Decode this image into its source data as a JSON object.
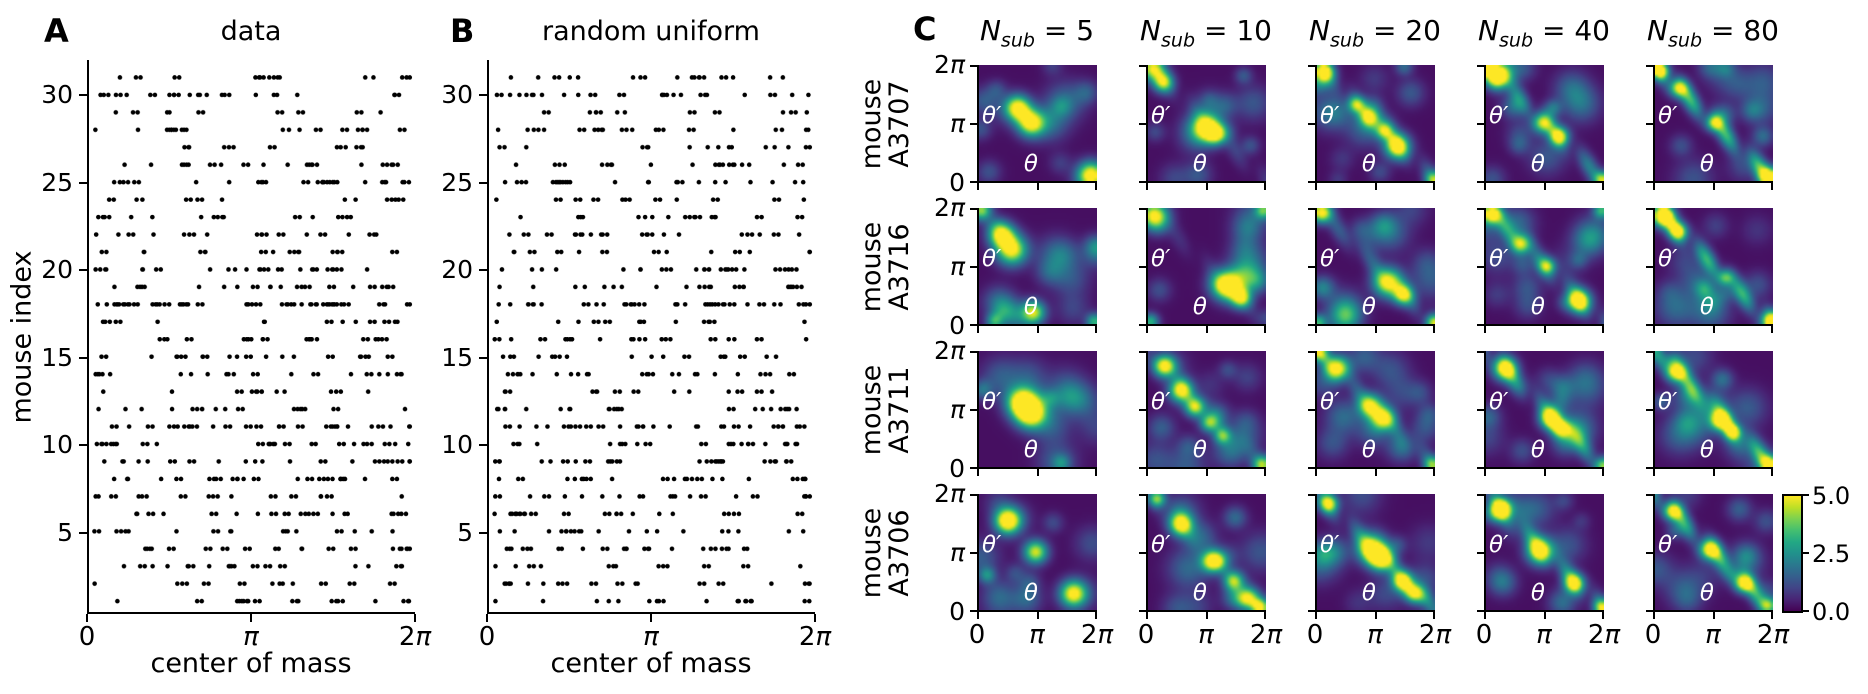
{
  "figure": {
    "background": "#ffffff",
    "panel_tags": {
      "A": "A",
      "B": "B",
      "C": "C"
    }
  },
  "chart_data": [
    {
      "type": "scatter",
      "panel": "A",
      "title": "data",
      "xlabel": "center of mass",
      "ylabel": "mouse index",
      "dot_color": "#000000",
      "xlim": [
        0,
        6.2832
      ],
      "ylim": [
        0.5,
        31.5
      ],
      "xtick_labels": [
        "0",
        "π",
        "2π"
      ],
      "yticks": [
        5,
        10,
        15,
        20,
        25,
        30
      ],
      "n_rows": 31,
      "points_per_row": [
        22,
        18,
        24,
        26,
        20,
        26,
        22,
        30,
        26,
        32,
        38,
        20,
        16,
        24,
        26,
        24,
        18,
        58,
        26,
        28,
        20,
        22,
        18,
        16,
        30,
        24,
        14,
        24,
        14,
        26,
        18
      ],
      "pair_probability": 0.45,
      "procedural_seed": 12345
    },
    {
      "type": "scatter",
      "panel": "B",
      "title": "random uniform",
      "xlabel": "center of mass",
      "ylabel": "",
      "dot_color": "#000000",
      "xlim": [
        0,
        6.2832
      ],
      "ylim": [
        0.5,
        31.5
      ],
      "xtick_labels": [
        "0",
        "π",
        "2π"
      ],
      "yticks": [
        5,
        10,
        15,
        20,
        25,
        30
      ],
      "n_rows": 31,
      "points_per_row": [
        18,
        24,
        16,
        26,
        20,
        28,
        24,
        26,
        32,
        26,
        36,
        24,
        18,
        26,
        20,
        24,
        16,
        42,
        24,
        28,
        18,
        26,
        20,
        18,
        26,
        22,
        16,
        24,
        16,
        28,
        20
      ],
      "pair_probability": 0.3,
      "procedural_seed": 67890
    },
    {
      "type": "heatmap_grid",
      "panel": "C",
      "columns": [
        {
          "base": "N",
          "sub": "sub",
          "rhs": "= 5",
          "value": 5
        },
        {
          "base": "N",
          "sub": "sub",
          "rhs": "= 10",
          "value": 10
        },
        {
          "base": "N",
          "sub": "sub",
          "rhs": "= 20",
          "value": 20
        },
        {
          "base": "N",
          "sub": "sub",
          "rhs": "= 40",
          "value": 40
        },
        {
          "base": "N",
          "sub": "sub",
          "rhs": "= 80",
          "value": 80
        }
      ],
      "rows": [
        {
          "line1": "mouse",
          "line2": "A3707"
        },
        {
          "line1": "mouse",
          "line2": "A3716"
        },
        {
          "line1": "mouse",
          "line2": "A3711"
        },
        {
          "line1": "mouse",
          "line2": "A3706"
        }
      ],
      "cell_axes": {
        "xlabel": "θ",
        "ylabel": "θ′",
        "range": [
          0,
          6.2832
        ],
        "ytick_labels": [
          "2π",
          "π",
          "0"
        ],
        "xtick_labels": [
          "0",
          "π",
          "2π"
        ]
      },
      "colorbar": {
        "min": 0.0,
        "max": 5.0,
        "tick_labels": [
          "5.0",
          "2.5",
          "0.0"
        ],
        "colormap": "viridis",
        "color_min": "#440154",
        "color_mid": "#21918c",
        "color_max": "#fde725"
      },
      "cells": [
        {
          "mouse": "A3707",
          "n_sub": 5,
          "ridge": 0,
          "seed": 11,
          "blobs": [
            [
              0.33,
              0.63,
              5,
              0.075
            ],
            [
              0.44,
              0.5,
              5,
              0.08
            ],
            [
              0.95,
              0.05,
              5,
              0.08
            ]
          ]
        },
        {
          "mouse": "A3707",
          "n_sub": 10,
          "ridge": 0.6,
          "seed": 12,
          "blobs": [
            [
              0.04,
              0.97,
              4.5,
              0.07
            ],
            [
              0.13,
              0.85,
              4,
              0.06
            ],
            [
              0.5,
              0.46,
              5,
              0.085
            ],
            [
              0.58,
              0.4,
              3.5,
              0.06
            ]
          ]
        },
        {
          "mouse": "A3707",
          "n_sub": 20,
          "ridge": 1.2,
          "seed": 13,
          "blobs": [
            [
              0.06,
              0.94,
              5,
              0.06
            ],
            [
              0.33,
              0.66,
              3,
              0.05
            ],
            [
              0.45,
              0.55,
              3.5,
              0.06
            ],
            [
              0.57,
              0.43,
              3,
              0.05
            ],
            [
              0.68,
              0.3,
              5,
              0.075
            ],
            [
              0.99,
              0.01,
              3,
              0.05
            ]
          ]
        },
        {
          "mouse": "A3707",
          "n_sub": 40,
          "ridge": 1.6,
          "seed": 14,
          "blobs": [
            [
              0.1,
              0.9,
              5,
              0.07
            ],
            [
              0.48,
              0.5,
              4,
              0.06
            ],
            [
              0.62,
              0.38,
              3.5,
              0.055
            ],
            [
              0.01,
              0.99,
              4,
              0.05
            ],
            [
              0.99,
              0.01,
              4,
              0.05
            ]
          ]
        },
        {
          "mouse": "A3707",
          "n_sub": 80,
          "ridge": 2.6,
          "seed": 15,
          "blobs": [
            [
              0.2,
              0.8,
              4,
              0.055
            ],
            [
              0.5,
              0.5,
              3.5,
              0.05
            ],
            [
              0.05,
              0.95,
              4,
              0.05
            ],
            [
              0.97,
              0.03,
              5,
              0.06
            ]
          ]
        },
        {
          "mouse": "A3716",
          "n_sub": 5,
          "ridge": 0,
          "seed": 21,
          "blobs": [
            [
              0.02,
              0.98,
              4,
              0.06
            ],
            [
              0.19,
              0.77,
              5,
              0.075
            ],
            [
              0.28,
              0.64,
              5,
              0.09
            ],
            [
              0.46,
              0.1,
              4.5,
              0.07
            ],
            [
              0.98,
              0.02,
              3,
              0.05
            ],
            [
              0.13,
              0.02,
              2.5,
              0.05
            ]
          ]
        },
        {
          "mouse": "A3716",
          "n_sub": 10,
          "ridge": 0.4,
          "seed": 22,
          "blobs": [
            [
              0.06,
              0.93,
              5,
              0.08
            ],
            [
              0.67,
              0.33,
              5,
              0.085
            ],
            [
              0.79,
              0.22,
              4,
              0.06
            ],
            [
              0.02,
              0.02,
              3,
              0.05
            ],
            [
              0.98,
              0.98,
              3,
              0.05
            ]
          ]
        },
        {
          "mouse": "A3716",
          "n_sub": 20,
          "ridge": 1.0,
          "seed": 23,
          "blobs": [
            [
              0.04,
              0.96,
              5,
              0.06
            ],
            [
              0.6,
              0.36,
              5,
              0.085
            ],
            [
              0.73,
              0.25,
              4,
              0.06
            ],
            [
              0.99,
              0.01,
              4,
              0.05
            ],
            [
              0.01,
              0.01,
              3,
              0.05
            ]
          ]
        },
        {
          "mouse": "A3716",
          "n_sub": 40,
          "ridge": 1.6,
          "seed": 24,
          "blobs": [
            [
              0.05,
              0.95,
              5,
              0.06
            ],
            [
              0.3,
              0.69,
              4,
              0.06
            ],
            [
              0.52,
              0.5,
              3,
              0.05
            ],
            [
              0.79,
              0.2,
              5,
              0.07
            ],
            [
              0.98,
              0.98,
              3,
              0.05
            ]
          ]
        },
        {
          "mouse": "A3716",
          "n_sub": 80,
          "ridge": 2.4,
          "seed": 25,
          "blobs": [
            [
              0.07,
              0.93,
              5,
              0.06
            ],
            [
              0.2,
              0.8,
              4,
              0.055
            ],
            [
              0.6,
              0.4,
              3,
              0.05
            ],
            [
              0.98,
              0.02,
              4.5,
              0.06
            ]
          ]
        },
        {
          "mouse": "A3711",
          "n_sub": 5,
          "ridge": 0,
          "seed": 31,
          "blobs": [
            [
              0.36,
              0.56,
              5,
              0.09
            ],
            [
              0.44,
              0.46,
              5,
              0.09
            ]
          ]
        },
        {
          "mouse": "A3711",
          "n_sub": 10,
          "ridge": 0.5,
          "seed": 32,
          "blobs": [
            [
              0.14,
              0.87,
              5,
              0.065
            ],
            [
              0.28,
              0.66,
              5,
              0.07
            ],
            [
              0.4,
              0.52,
              4.5,
              0.06
            ],
            [
              0.52,
              0.38,
              3.5,
              0.055
            ],
            [
              0.63,
              0.27,
              3,
              0.05
            ],
            [
              0.97,
              0.02,
              4,
              0.055
            ]
          ]
        },
        {
          "mouse": "A3711",
          "n_sub": 20,
          "ridge": 1.0,
          "seed": 33,
          "blobs": [
            [
              0.17,
              0.85,
              5,
              0.075
            ],
            [
              0.45,
              0.53,
              4.5,
              0.07
            ],
            [
              0.56,
              0.42,
              4.5,
              0.07
            ],
            [
              0.01,
              0.99,
              3,
              0.05
            ],
            [
              0.98,
              0.02,
              3,
              0.05
            ]
          ]
        },
        {
          "mouse": "A3711",
          "n_sub": 40,
          "ridge": 1.7,
          "seed": 34,
          "blobs": [
            [
              0.16,
              0.85,
              5,
              0.07
            ],
            [
              0.55,
              0.42,
              5,
              0.065
            ],
            [
              0.64,
              0.33,
              4,
              0.055
            ],
            [
              0.99,
              0.01,
              3.5,
              0.05
            ]
          ]
        },
        {
          "mouse": "A3711",
          "n_sub": 80,
          "ridge": 2.3,
          "seed": 35,
          "blobs": [
            [
              0.18,
              0.82,
              5,
              0.06
            ],
            [
              0.55,
              0.4,
              4.5,
              0.06
            ],
            [
              0.66,
              0.3,
              4,
              0.05
            ],
            [
              0.97,
              0.03,
              3.5,
              0.05
            ]
          ]
        },
        {
          "mouse": "A3706",
          "n_sub": 5,
          "ridge": 0,
          "seed": 41,
          "blobs": [
            [
              0.24,
              0.77,
              5,
              0.075
            ],
            [
              0.48,
              0.5,
              4.5,
              0.07
            ],
            [
              0.8,
              0.14,
              5,
              0.08
            ],
            [
              0.07,
              0.3,
              2,
              0.05
            ]
          ]
        },
        {
          "mouse": "A3706",
          "n_sub": 10,
          "ridge": 0.5,
          "seed": 42,
          "blobs": [
            [
              0.08,
              0.96,
              3.5,
              0.05
            ],
            [
              0.28,
              0.74,
              5,
              0.07
            ],
            [
              0.54,
              0.42,
              4.5,
              0.065
            ],
            [
              0.73,
              0.25,
              4,
              0.06
            ],
            [
              0.84,
              0.1,
              4.5,
              0.065
            ],
            [
              0.95,
              0.02,
              4,
              0.05
            ]
          ]
        },
        {
          "mouse": "A3706",
          "n_sub": 20,
          "ridge": 1.4,
          "seed": 43,
          "blobs": [
            [
              0.1,
              0.92,
              4,
              0.055
            ],
            [
              0.47,
              0.52,
              5,
              0.085
            ],
            [
              0.55,
              0.44,
              5,
              0.07
            ],
            [
              0.73,
              0.25,
              4.5,
              0.06
            ],
            [
              0.82,
              0.15,
              4,
              0.055
            ]
          ]
        },
        {
          "mouse": "A3706",
          "n_sub": 40,
          "ridge": 1.8,
          "seed": 44,
          "blobs": [
            [
              0.13,
              0.87,
              4.5,
              0.06
            ],
            [
              0.46,
              0.51,
              5,
              0.08
            ],
            [
              0.75,
              0.23,
              4.5,
              0.06
            ],
            [
              0.98,
              0.02,
              3,
              0.05
            ]
          ]
        },
        {
          "mouse": "A3706",
          "n_sub": 80,
          "ridge": 2.4,
          "seed": 45,
          "blobs": [
            [
              0.15,
              0.85,
              4.5,
              0.055
            ],
            [
              0.46,
              0.52,
              4.5,
              0.06
            ],
            [
              0.75,
              0.23,
              4.5,
              0.055
            ],
            [
              0.96,
              0.04,
              3.5,
              0.05
            ]
          ]
        }
      ]
    }
  ]
}
